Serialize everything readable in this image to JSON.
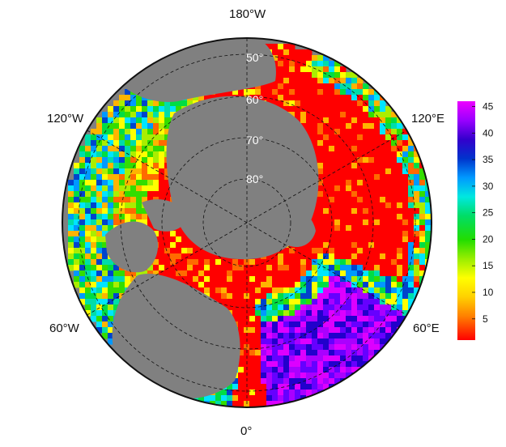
{
  "map": {
    "projection": "north-polar-stereographic",
    "background_color": "#808080",
    "graticule": {
      "latitude_labels": [
        "50°",
        "60°",
        "70°",
        "80°"
      ],
      "latitudes": [
        50,
        60,
        70,
        80
      ],
      "longitude_labels": {
        "top": "180°W",
        "upper_left": "120°W",
        "upper_right": "120°E",
        "lower_left": "60°W",
        "lower_right": "60°E",
        "bottom": "0°"
      }
    },
    "palette": [
      "#ff0000",
      "#ff6a00",
      "#ffb400",
      "#ffff00",
      "#aaee00",
      "#33dd00",
      "#00dd44",
      "#00ddaa",
      "#00e5ff",
      "#0099ff",
      "#0044cc",
      "#2200cc",
      "#6600ff",
      "#aa00ff",
      "#dd00ff"
    ]
  },
  "colorbar": {
    "min": 1,
    "max": 46,
    "ticks": [
      5,
      10,
      15,
      20,
      25,
      30,
      35,
      40,
      45
    ],
    "tick_labels": [
      "5",
      "10",
      "15",
      "20",
      "25",
      "30",
      "35",
      "40",
      "45"
    ]
  }
}
